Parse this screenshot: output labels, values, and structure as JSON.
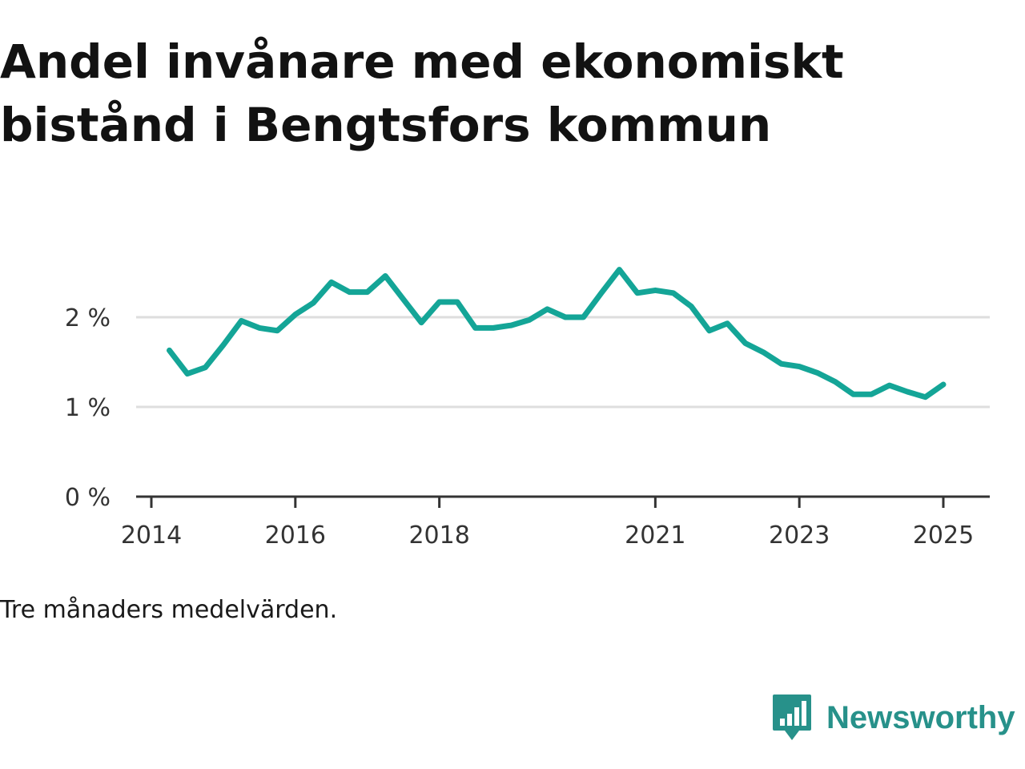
{
  "title": "Andel invånare med ekonomiskt bistånd i Bengtsfors kommun",
  "note": "Tre månaders medelvärden.",
  "brand": {
    "name": "Newsworthy",
    "color": "#27918a",
    "icon": "newsworthy-logo-icon"
  },
  "chart_data": {
    "type": "line",
    "title": "Andel invånare med ekonomiskt bistånd i Bengtsfors kommun",
    "xlabel": "",
    "ylabel": "",
    "y_unit": "%",
    "ylim": [
      0,
      2.7
    ],
    "xlim": [
      "2013-12",
      "2025-09"
    ],
    "y_ticks": [
      0,
      1,
      2
    ],
    "y_tick_labels": [
      "0 %",
      "1 %",
      "2 %"
    ],
    "x_ticks": [
      "2014-01",
      "2016-01",
      "2018-01",
      "2021-01",
      "2023-01",
      "2025-01"
    ],
    "x_tick_labels": [
      "2014",
      "2016",
      "2018",
      "2021",
      "2023",
      "2025"
    ],
    "grid": true,
    "color": "#14a597",
    "series": [
      {
        "x": [
          "2014-04",
          "2014-07",
          "2014-10",
          "2015-01",
          "2015-04",
          "2015-07",
          "2015-10",
          "2016-01",
          "2016-04",
          "2016-07",
          "2016-10",
          "2017-01",
          "2017-04",
          "2017-07",
          "2017-10",
          "2018-01",
          "2018-04",
          "2018-07",
          "2018-10",
          "2019-01",
          "2019-04",
          "2019-07",
          "2019-10",
          "2020-01",
          "2020-04",
          "2020-07",
          "2020-10",
          "2021-01",
          "2021-04",
          "2021-07",
          "2021-10",
          "2022-01",
          "2022-04",
          "2022-07",
          "2022-10",
          "2023-01",
          "2023-04",
          "2023-07",
          "2023-10",
          "2024-01",
          "2024-04",
          "2024-07",
          "2024-10",
          "2025-01"
        ],
        "values": [
          1.63,
          1.37,
          1.44,
          1.69,
          1.96,
          1.88,
          1.85,
          2.03,
          2.16,
          2.39,
          2.28,
          2.28,
          2.46,
          2.2,
          1.94,
          2.17,
          2.17,
          1.88,
          1.88,
          1.91,
          1.97,
          2.09,
          2.0,
          2.0,
          2.27,
          2.53,
          2.27,
          2.3,
          2.27,
          2.12,
          1.85,
          1.93,
          1.71,
          1.61,
          1.48,
          1.45,
          1.38,
          1.28,
          1.14,
          1.14,
          1.24,
          1.17,
          1.11,
          1.25
        ]
      }
    ]
  }
}
